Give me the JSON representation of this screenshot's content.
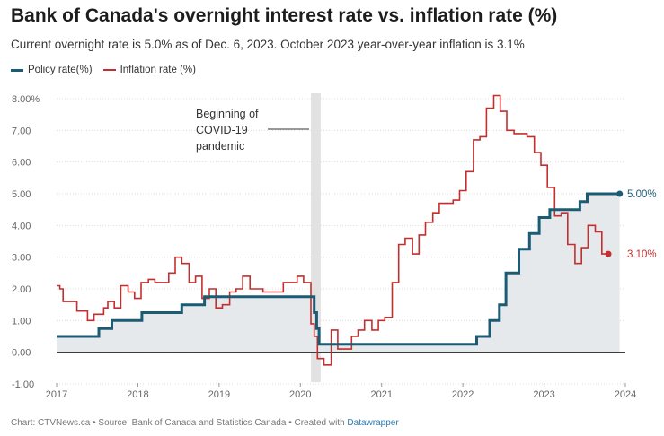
{
  "header": {
    "title": "Bank of Canada's overnight interest rate vs. inflation rate (%)",
    "subtitle": "Current overnight rate is 5.0% as of Dec. 6, 2023. October 2023 year-over-year inflation is 3.1%"
  },
  "footer": {
    "prefix": "Chart: CTVNews.ca • Source: Bank of Canada and Statistics Canada • Created with ",
    "link": "Datawrapper"
  },
  "colors": {
    "policy": "#1b5c74",
    "inflation": "#c32f2f",
    "area": "#e6e9ec",
    "covid": "#e2e2e2"
  },
  "chart_data": {
    "type": "line",
    "x_range": [
      2017.0,
      2024.0
    ],
    "ylim": [
      -1.0,
      8.0
    ],
    "y_ticks": [
      -1,
      0,
      1,
      2,
      3,
      4,
      5,
      6,
      7,
      8
    ],
    "y_tick_labels": [
      "-1.00",
      "0.00",
      "1.00",
      "2.00",
      "3.00",
      "4.00",
      "5.00",
      "6.00",
      "7.00",
      "8.00%"
    ],
    "x_ticks": [
      2017,
      2018,
      2019,
      2020,
      2021,
      2022,
      2023,
      2024
    ],
    "x_tick_labels": [
      "2017",
      "2018",
      "2019",
      "2020",
      "2021",
      "2022",
      "2023",
      "2024"
    ],
    "grid": true,
    "legend_position": "top-left",
    "series": [
      {
        "name": "Policy rate(%)",
        "step": true,
        "points": [
          [
            2017.0,
            0.5
          ],
          [
            2017.52,
            0.75
          ],
          [
            2017.68,
            1.0
          ],
          [
            2018.05,
            1.25
          ],
          [
            2018.54,
            1.5
          ],
          [
            2018.82,
            1.75
          ],
          [
            2020.17,
            1.25
          ],
          [
            2020.2,
            0.75
          ],
          [
            2020.23,
            0.25
          ],
          [
            2022.17,
            0.5
          ],
          [
            2022.33,
            1.0
          ],
          [
            2022.45,
            1.5
          ],
          [
            2022.53,
            2.5
          ],
          [
            2022.69,
            3.25
          ],
          [
            2022.82,
            3.75
          ],
          [
            2022.94,
            4.25
          ],
          [
            2023.07,
            4.5
          ],
          [
            2023.44,
            4.75
          ],
          [
            2023.53,
            5.0
          ],
          [
            2023.93,
            5.0
          ]
        ]
      },
      {
        "name": "Inflation rate (%)",
        "step": true,
        "points": [
          [
            2017.0,
            2.1
          ],
          [
            2017.04,
            2.0
          ],
          [
            2017.08,
            1.6
          ],
          [
            2017.25,
            1.3
          ],
          [
            2017.33,
            1.3
          ],
          [
            2017.38,
            1.0
          ],
          [
            2017.46,
            1.2
          ],
          [
            2017.54,
            1.2
          ],
          [
            2017.58,
            1.4
          ],
          [
            2017.63,
            1.6
          ],
          [
            2017.71,
            1.4
          ],
          [
            2017.79,
            2.1
          ],
          [
            2017.88,
            1.9
          ],
          [
            2017.96,
            1.7
          ],
          [
            2018.04,
            2.2
          ],
          [
            2018.13,
            2.3
          ],
          [
            2018.21,
            2.2
          ],
          [
            2018.29,
            2.2
          ],
          [
            2018.38,
            2.5
          ],
          [
            2018.46,
            3.0
          ],
          [
            2018.54,
            2.8
          ],
          [
            2018.63,
            2.2
          ],
          [
            2018.71,
            2.4
          ],
          [
            2018.79,
            1.7
          ],
          [
            2018.88,
            2.0
          ],
          [
            2018.96,
            1.4
          ],
          [
            2019.04,
            1.5
          ],
          [
            2019.13,
            1.9
          ],
          [
            2019.21,
            2.0
          ],
          [
            2019.29,
            2.4
          ],
          [
            2019.38,
            2.0
          ],
          [
            2019.54,
            1.9
          ],
          [
            2019.63,
            1.9
          ],
          [
            2019.71,
            1.9
          ],
          [
            2019.79,
            2.2
          ],
          [
            2019.88,
            2.2
          ],
          [
            2019.96,
            2.4
          ],
          [
            2020.04,
            2.2
          ],
          [
            2020.13,
            0.9
          ],
          [
            2020.17,
            0.5
          ],
          [
            2020.21,
            -0.2
          ],
          [
            2020.29,
            -0.4
          ],
          [
            2020.38,
            0.7
          ],
          [
            2020.46,
            0.1
          ],
          [
            2020.54,
            0.1
          ],
          [
            2020.63,
            0.5
          ],
          [
            2020.71,
            0.7
          ],
          [
            2020.79,
            1.0
          ],
          [
            2020.88,
            0.7
          ],
          [
            2020.96,
            1.0
          ],
          [
            2021.04,
            1.1
          ],
          [
            2021.13,
            2.2
          ],
          [
            2021.21,
            3.4
          ],
          [
            2021.29,
            3.6
          ],
          [
            2021.38,
            3.1
          ],
          [
            2021.46,
            3.7
          ],
          [
            2021.54,
            4.1
          ],
          [
            2021.63,
            4.4
          ],
          [
            2021.71,
            4.7
          ],
          [
            2021.79,
            4.7
          ],
          [
            2021.88,
            4.8
          ],
          [
            2021.96,
            5.1
          ],
          [
            2022.04,
            5.7
          ],
          [
            2022.13,
            6.7
          ],
          [
            2022.21,
            6.8
          ],
          [
            2022.29,
            7.7
          ],
          [
            2022.38,
            8.1
          ],
          [
            2022.46,
            7.6
          ],
          [
            2022.54,
            7.0
          ],
          [
            2022.63,
            6.9
          ],
          [
            2022.71,
            6.9
          ],
          [
            2022.79,
            6.8
          ],
          [
            2022.88,
            6.3
          ],
          [
            2022.96,
            5.9
          ],
          [
            2023.04,
            5.2
          ],
          [
            2023.13,
            4.3
          ],
          [
            2023.21,
            4.4
          ],
          [
            2023.29,
            3.4
          ],
          [
            2023.38,
            2.8
          ],
          [
            2023.46,
            3.3
          ],
          [
            2023.54,
            4.0
          ],
          [
            2023.63,
            3.8
          ],
          [
            2023.71,
            3.1
          ],
          [
            2023.79,
            3.1
          ]
        ]
      }
    ],
    "end_labels": {
      "policy": "5.00%",
      "inflation": "3.10%"
    },
    "annotation": {
      "lines": [
        "Beginning of",
        "COVID-19",
        "pandemic"
      ],
      "x_start": 2020.13,
      "x_end": 2020.25
    }
  }
}
